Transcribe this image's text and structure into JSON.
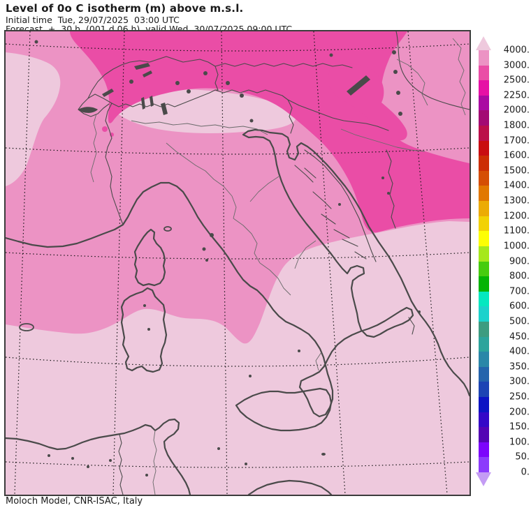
{
  "header": {
    "title": "Level of 0o C isotherm (m) above m.s.l.",
    "initial_time": "Initial time  Tue, 29/07/2025  03:00 UTC",
    "forecast": "Forecast  +  30 h  (001 d 06 h)  valid Wed, 30/07/2025 09:00 UTC"
  },
  "footer": {
    "credit": "Moloch Model, CNR-ISAC, Italy"
  },
  "colorbar": {
    "boundary_labels_top_to_bottom": [
      "4000.",
      "3000.",
      "2500.",
      "2250.",
      "2000.",
      "1800.",
      "1700.",
      "1600.",
      "1500.",
      "1400.",
      "1300.",
      "1200.",
      "1100.",
      "1000.",
      "900.",
      "800.",
      "700.",
      "600.",
      "500.",
      "450.",
      "400.",
      "350.",
      "300.",
      "250.",
      "200.",
      "150.",
      "100.",
      "50.",
      "0."
    ],
    "segment_colors_top_to_bottom": [
      "#ec93c4",
      "#ea4da6",
      "#e611a5",
      "#aa0aa2",
      "#a30a73",
      "#bb0f4a",
      "#c90d11",
      "#cc2e04",
      "#d54e04",
      "#e17800",
      "#ecab04",
      "#f2d204",
      "#fdfe04",
      "#a6e81c",
      "#46cc0e",
      "#04b404",
      "#04e8c0",
      "#1cd2cc",
      "#3c9c80",
      "#2ca49c",
      "#2a87a8",
      "#2464ac",
      "#1c44b4",
      "#0c14c4",
      "#3408c8",
      "#5404b4",
      "#7c04fc",
      "#8c3cfc"
    ],
    "arrow_top_color": "#eec9dd",
    "arrow_bottom_color": "#c49cf4"
  },
  "map": {
    "colors": {
      "band_gt_4000": "#eec9dd",
      "band_3000_4000": "#ec93c4",
      "band_2500_3000": "#ea4da6",
      "linework": "#4a4a4a"
    },
    "visible_bands_m": [
      "> 4000 (south Mediterranean, Po valley)",
      "3000-4000 (central Italy, France, Pannonian basin)",
      "2500-3000 (Alps, Balkans)"
    ]
  }
}
